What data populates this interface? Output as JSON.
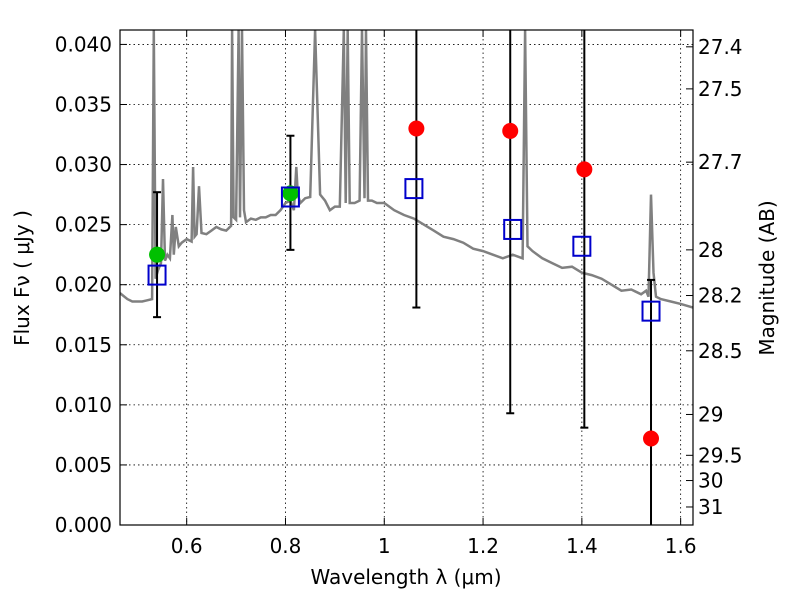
{
  "chart_data": {
    "type": "scatter",
    "xlabel": "Wavelength  λ (μm)",
    "ylabel": "Flux  Fν  ( μJy )",
    "y2label": "Magnitude (AB)",
    "xlim": [
      0.465,
      1.625
    ],
    "ylim": [
      0.0,
      0.0412
    ],
    "grid": true,
    "x_ticks": [
      0.6,
      0.8,
      1.0,
      1.2,
      1.4,
      1.6
    ],
    "x_tick_labels": [
      "0.6",
      "0.8",
      "1",
      "1.2",
      "1.4",
      "1.6"
    ],
    "y_ticks": [
      0.0,
      0.005,
      0.01,
      0.015,
      0.02,
      0.025,
      0.03,
      0.035,
      0.04
    ],
    "y_tick_labels": [
      "0.000",
      "0.005",
      "0.010",
      "0.015",
      "0.020",
      "0.025",
      "0.030",
      "0.035",
      "0.040"
    ],
    "y2_ticks": [
      {
        "label": "27.4",
        "flux": 0.0398
      },
      {
        "label": "27.5",
        "flux": 0.0363
      },
      {
        "label": "27.7",
        "flux": 0.0302
      },
      {
        "label": "28",
        "flux": 0.0229
      },
      {
        "label": "28.2",
        "flux": 0.0191
      },
      {
        "label": "28.5",
        "flux": 0.0145
      },
      {
        "label": "29",
        "flux": 0.0092
      },
      {
        "label": "29.5",
        "flux": 0.0058
      },
      {
        "label": "30",
        "flux": 0.0037
      },
      {
        "label": "31",
        "flux": 0.0015
      }
    ],
    "model_spectrum": {
      "color": "#808080",
      "x": [
        0.465,
        0.48,
        0.49,
        0.51,
        0.52,
        0.53,
        0.5335,
        0.537,
        0.542,
        0.548,
        0.552,
        0.556,
        0.561,
        0.566,
        0.571,
        0.574,
        0.578,
        0.584,
        0.59,
        0.6,
        0.61,
        0.613,
        0.616,
        0.62,
        0.625,
        0.63,
        0.64,
        0.65,
        0.66,
        0.67,
        0.68,
        0.69,
        0.692,
        0.695,
        0.7,
        0.705,
        0.708,
        0.712,
        0.716,
        0.72,
        0.73,
        0.74,
        0.75,
        0.76,
        0.77,
        0.78,
        0.79,
        0.8,
        0.81,
        0.817,
        0.822,
        0.825,
        0.83,
        0.84,
        0.85,
        0.86,
        0.87,
        0.88,
        0.89,
        0.9,
        0.91,
        0.918,
        0.922,
        0.926,
        0.93,
        0.94,
        0.95,
        0.955,
        0.96,
        0.963,
        0.967,
        0.975,
        0.985,
        1.0,
        1.02,
        1.04,
        1.06,
        1.08,
        1.1,
        1.12,
        1.14,
        1.16,
        1.18,
        1.2,
        1.22,
        1.24,
        1.26,
        1.28,
        1.285,
        1.29,
        1.3,
        1.32,
        1.34,
        1.36,
        1.38,
        1.4,
        1.42,
        1.44,
        1.46,
        1.48,
        1.5,
        1.52,
        1.53,
        1.535,
        1.54,
        1.545,
        1.55,
        1.56,
        1.58,
        1.6,
        1.625
      ],
      "y": [
        0.0193,
        0.0188,
        0.0186,
        0.0186,
        0.0187,
        0.0188,
        0.0412,
        0.0205,
        0.0212,
        0.0218,
        0.0288,
        0.022,
        0.0225,
        0.0222,
        0.0258,
        0.0225,
        0.0248,
        0.0232,
        0.0235,
        0.0238,
        0.0236,
        0.0298,
        0.024,
        0.0242,
        0.0282,
        0.0243,
        0.0242,
        0.0245,
        0.0248,
        0.0246,
        0.0245,
        0.0249,
        0.0412,
        0.0256,
        0.0254,
        0.0412,
        0.0256,
        0.0412,
        0.0262,
        0.0252,
        0.0255,
        0.0254,
        0.0256,
        0.0256,
        0.0258,
        0.0258,
        0.0262,
        0.0268,
        0.027,
        0.0262,
        0.0298,
        0.0275,
        0.0268,
        0.0272,
        0.0273,
        0.0412,
        0.0275,
        0.027,
        0.0262,
        0.0265,
        0.0265,
        0.0412,
        0.0268,
        0.0412,
        0.0268,
        0.0268,
        0.027,
        0.0412,
        0.0272,
        0.0412,
        0.027,
        0.027,
        0.0268,
        0.0268,
        0.0262,
        0.0258,
        0.0255,
        0.025,
        0.0245,
        0.024,
        0.0238,
        0.0235,
        0.023,
        0.0228,
        0.0225,
        0.0222,
        0.0225,
        0.0222,
        0.0412,
        0.0232,
        0.0228,
        0.0222,
        0.0218,
        0.0214,
        0.0215,
        0.021,
        0.0208,
        0.0205,
        0.02,
        0.0195,
        0.0196,
        0.0192,
        0.0195,
        0.019,
        0.0275,
        0.021,
        0.019,
        0.0188,
        0.0186,
        0.0184,
        0.0181
      ]
    },
    "observed_green": {
      "color": "#00c000",
      "points": [
        {
          "x": 0.54,
          "y": 0.0225
        },
        {
          "x": 0.81,
          "y": 0.0276
        }
      ]
    },
    "observed_red": {
      "color": "#ff0000",
      "points": [
        {
          "x": 1.065,
          "y": 0.033
        },
        {
          "x": 1.255,
          "y": 0.0328
        },
        {
          "x": 1.405,
          "y": 0.0296
        },
        {
          "x": 1.54,
          "y": 0.0072
        }
      ]
    },
    "error_bars": [
      {
        "x": 0.54,
        "lo": 0.0173,
        "hi": 0.0277
      },
      {
        "x": 0.81,
        "lo": 0.0229,
        "hi": 0.0324
      },
      {
        "x": 1.065,
        "lo": 0.0181,
        "hi": 0.0412
      },
      {
        "x": 1.255,
        "lo": 0.0093,
        "hi": 0.0412
      },
      {
        "x": 1.405,
        "lo": 0.0081,
        "hi": 0.0412
      },
      {
        "x": 1.54,
        "lo": 0.0,
        "hi": 0.0204
      }
    ],
    "model_photometry": {
      "color": "#0000cc",
      "points": [
        {
          "x": 0.54,
          "y": 0.0208
        },
        {
          "x": 0.81,
          "y": 0.0273
        },
        {
          "x": 1.06,
          "y": 0.028
        },
        {
          "x": 1.26,
          "y": 0.0246
        },
        {
          "x": 1.4,
          "y": 0.0232
        },
        {
          "x": 1.54,
          "y": 0.0178
        }
      ]
    }
  }
}
